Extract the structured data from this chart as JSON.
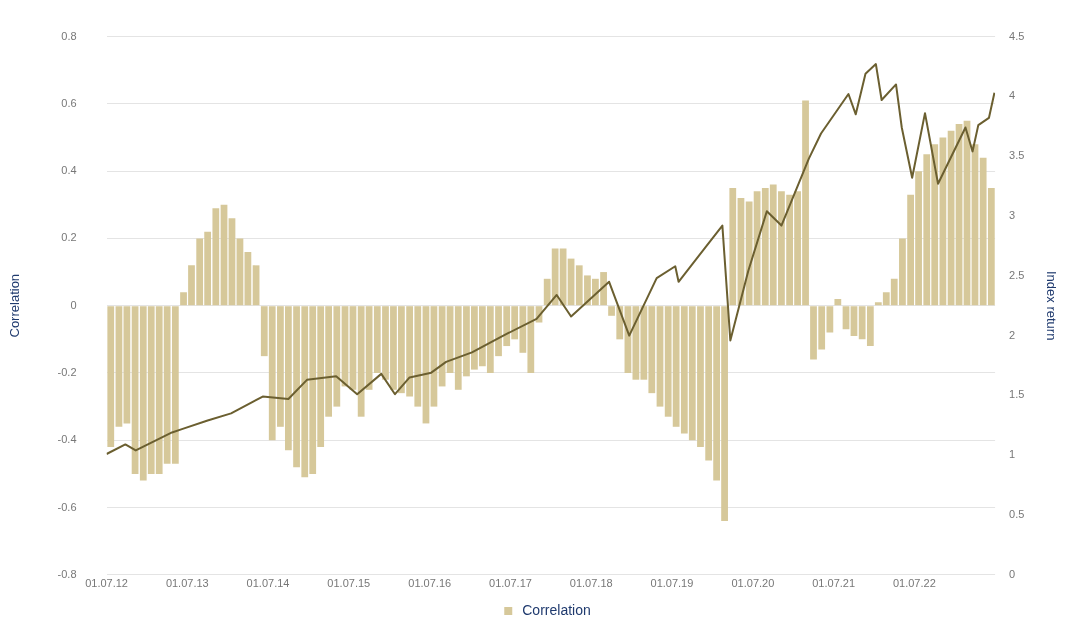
{
  "chart_data": {
    "type": "bar",
    "ylabel": "Correlation",
    "y2label": "Index return",
    "xlim": [
      "2012-07-01",
      "2023-07-01"
    ],
    "xticks": [
      {
        "value": "2012-07-01",
        "label": "01.07.12"
      },
      {
        "value": "2013-07-01",
        "label": "01.07.13"
      },
      {
        "value": "2014-07-01",
        "label": "01.07.14"
      },
      {
        "value": "2015-07-01",
        "label": "01.07.15"
      },
      {
        "value": "2016-07-01",
        "label": "01.07.16"
      },
      {
        "value": "2017-07-01",
        "label": "01.07.17"
      },
      {
        "value": "2018-07-01",
        "label": "01.07.18"
      },
      {
        "value": "2019-07-01",
        "label": "01.07.19"
      },
      {
        "value": "2020-07-01",
        "label": "01.07.20"
      },
      {
        "value": "2021-07-01",
        "label": "01.07.21"
      },
      {
        "value": "2022-07-01",
        "label": "01.07.22"
      }
    ],
    "ylim": [
      -0.8,
      0.8
    ],
    "yticks": [
      -0.8,
      -0.6,
      -0.4,
      -0.2,
      0,
      0.2,
      0.4,
      0.6,
      0.8
    ],
    "y2lim": [
      0,
      4.5
    ],
    "y2ticks": [
      0,
      0.5,
      1,
      1.5,
      2,
      2.5,
      3,
      3.5,
      4,
      4.5
    ],
    "grid": "y",
    "legend": "bottom",
    "marker": "none",
    "line_style": "solid",
    "series": [
      {
        "name": "Correlation",
        "color": "#d6c89a",
        "x": [
          "2012-07-20",
          "2012-08-26",
          "2012-10-01",
          "2012-11-07",
          "2012-12-14",
          "2013-01-19",
          "2013-02-24",
          "2013-04-01",
          "2013-05-08",
          "2013-06-14",
          "2013-07-20",
          "2013-08-26",
          "2013-10-01",
          "2013-11-07",
          "2013-12-14",
          "2014-01-19",
          "2014-02-24",
          "2014-04-01",
          "2014-05-08",
          "2014-06-14",
          "2014-07-20",
          "2014-08-26",
          "2014-10-01",
          "2014-11-07",
          "2014-12-14",
          "2015-01-19",
          "2015-02-24",
          "2015-04-01",
          "2015-05-08",
          "2015-06-14",
          "2015-07-20",
          "2015-08-26",
          "2015-10-01",
          "2015-11-07",
          "2015-12-14",
          "2016-01-19",
          "2016-02-24",
          "2016-04-01",
          "2016-05-08",
          "2016-06-14",
          "2016-07-20",
          "2016-08-26",
          "2016-10-01",
          "2016-11-07",
          "2016-12-14",
          "2017-01-19",
          "2017-02-24",
          "2017-04-01",
          "2017-05-08",
          "2017-06-14",
          "2017-07-20",
          "2017-08-26",
          "2017-10-01",
          "2017-11-07",
          "2017-12-14",
          "2018-01-19",
          "2018-02-24",
          "2018-04-01",
          "2018-05-08",
          "2018-06-14",
          "2018-07-20",
          "2018-08-26",
          "2018-10-01",
          "2018-11-07",
          "2018-12-14",
          "2019-01-19",
          "2019-02-24",
          "2019-04-01",
          "2019-05-08",
          "2019-06-14",
          "2019-07-20",
          "2019-08-26",
          "2019-10-01",
          "2019-11-07",
          "2019-12-14",
          "2020-01-19",
          "2020-02-24",
          "2020-04-01",
          "2020-05-08",
          "2020-06-14",
          "2020-07-20",
          "2020-08-26",
          "2020-10-01",
          "2020-11-07",
          "2020-12-14",
          "2021-01-19",
          "2021-02-24",
          "2021-04-01",
          "2021-05-08",
          "2021-06-14",
          "2021-07-20",
          "2021-08-26",
          "2021-10-01",
          "2021-11-07",
          "2021-12-14",
          "2022-01-19",
          "2022-02-24",
          "2022-04-01",
          "2022-05-08",
          "2022-06-14",
          "2022-07-20",
          "2022-08-26",
          "2022-10-01",
          "2022-11-07",
          "2022-12-14",
          "2023-01-19",
          "2023-02-24",
          "2023-04-01",
          "2023-05-08",
          "2023-06-14"
        ],
        "values": [
          -0.42,
          -0.36,
          -0.35,
          -0.5,
          -0.52,
          -0.5,
          -0.5,
          -0.47,
          -0.47,
          0.04,
          0.12,
          0.2,
          0.22,
          0.29,
          0.3,
          0.26,
          0.2,
          0.16,
          0.12,
          -0.15,
          -0.4,
          -0.36,
          -0.43,
          -0.48,
          -0.51,
          -0.5,
          -0.42,
          -0.33,
          -0.3,
          -0.24,
          -0.25,
          -0.33,
          -0.25,
          -0.2,
          -0.22,
          -0.25,
          -0.26,
          -0.27,
          -0.3,
          -0.35,
          -0.3,
          -0.24,
          -0.2,
          -0.25,
          -0.21,
          -0.19,
          -0.18,
          -0.2,
          -0.15,
          -0.12,
          -0.1,
          -0.14,
          -0.2,
          -0.05,
          0.08,
          0.17,
          0.17,
          0.14,
          0.12,
          0.09,
          0.08,
          0.1,
          -0.03,
          -0.1,
          -0.2,
          -0.22,
          -0.22,
          -0.26,
          -0.3,
          -0.33,
          -0.36,
          -0.38,
          -0.4,
          -0.42,
          -0.46,
          -0.52,
          -0.64,
          0.35,
          0.32,
          0.31,
          0.34,
          0.35,
          0.36,
          0.34,
          0.33,
          0.34,
          0.61,
          -0.16,
          -0.13,
          -0.08,
          0.02,
          -0.07,
          -0.09,
          -0.1,
          -0.12,
          0.01,
          0.04,
          0.08,
          0.2,
          0.33,
          0.4,
          0.45,
          0.48,
          0.5,
          0.52,
          0.54,
          0.55,
          0.48,
          0.44,
          0.35
        ]
      },
      {
        "type": "line",
        "axis": "y2",
        "color": "#6b5f30",
        "x": [
          "2012-07-01",
          "2012-09-24",
          "2012-11-10",
          "2013-04-23",
          "2013-06-10",
          "2013-10-01",
          "2014-01-15",
          "2014-06-07",
          "2014-10-01",
          "2014-12-24",
          "2015-05-05",
          "2015-08-08",
          "2015-11-25",
          "2016-01-26",
          "2016-04-01",
          "2016-07-08",
          "2016-09-13",
          "2017-01-08",
          "2017-05-19",
          "2017-10-27",
          "2018-01-26",
          "2018-04-01",
          "2018-09-20",
          "2018-12-20",
          "2019-04-23",
          "2019-07-16",
          "2019-07-31",
          "2020-02-14",
          "2020-03-21",
          "2020-06-10",
          "2020-09-02",
          "2020-11-07",
          "2021-03-11",
          "2021-05-05",
          "2021-09-06",
          "2021-10-09",
          "2021-11-22",
          "2022-01-08",
          "2022-02-03",
          "2022-04-09",
          "2022-05-05",
          "2022-06-21",
          "2022-08-18",
          "2022-10-16",
          "2023-02-17",
          "2023-03-21",
          "2023-04-16",
          "2023-06-03",
          "2023-06-28"
        ],
        "values": [
          1.01,
          1.09,
          1.04,
          1.19,
          1.22,
          1.29,
          1.35,
          1.49,
          1.47,
          1.63,
          1.66,
          1.51,
          1.68,
          1.51,
          1.65,
          1.69,
          1.78,
          1.86,
          1.99,
          2.14,
          2.34,
          2.16,
          2.45,
          2.0,
          2.48,
          2.58,
          2.45,
          2.92,
          1.96,
          2.54,
          3.04,
          2.92,
          3.48,
          3.69,
          4.02,
          3.85,
          4.19,
          4.27,
          3.97,
          4.1,
          3.74,
          3.32,
          3.86,
          3.27,
          3.74,
          3.54,
          3.76,
          3.82,
          4.03
        ]
      }
    ]
  }
}
